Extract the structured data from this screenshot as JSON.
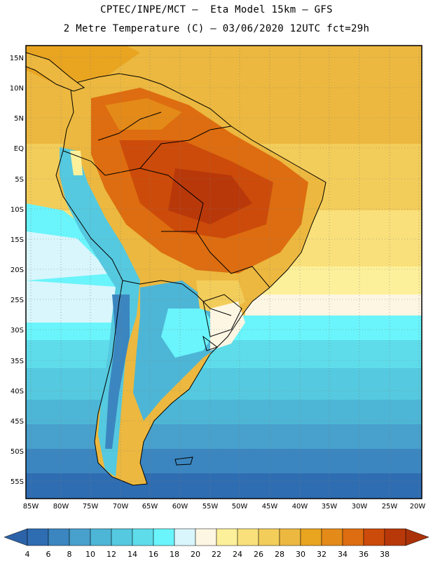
{
  "title": {
    "line1": "CPTEC/INPE/MCT –  Eta Model 15km – GFS",
    "line2": "2 Metre Temperature (C) – 03/06/2020 12UTC fct=29h"
  },
  "map": {
    "lat_ticks": [
      "15N",
      "10N",
      "5N",
      "EQ",
      "5S",
      "10S",
      "15S",
      "20S",
      "25S",
      "30S",
      "35S",
      "40S",
      "45S",
      "50S",
      "55S"
    ],
    "lon_ticks": [
      "85W",
      "80W",
      "75W",
      "70W",
      "65W",
      "60W",
      "55W",
      "50W",
      "45W",
      "40W",
      "35W",
      "30W",
      "25W",
      "20W"
    ]
  },
  "colorbar": {
    "labels": [
      "4",
      "6",
      "8",
      "10",
      "12",
      "14",
      "16",
      "18",
      "20",
      "22",
      "24",
      "26",
      "28",
      "30",
      "32",
      "34",
      "36",
      "38"
    ],
    "colors": [
      "#2f6db2",
      "#3b86c0",
      "#48a0cc",
      "#4db6d6",
      "#55c9df",
      "#5edcea",
      "#6af4fb",
      "#d8f6fc",
      "#fdf6e3",
      "#fdf09a",
      "#f9e07a",
      "#f3cd5a",
      "#ecb83f",
      "#e9a420",
      "#e48a18",
      "#dd6d10",
      "#cc4b0a",
      "#b8380a"
    ],
    "low_color": "#2c63a8",
    "high_color": "#ab3208"
  }
}
